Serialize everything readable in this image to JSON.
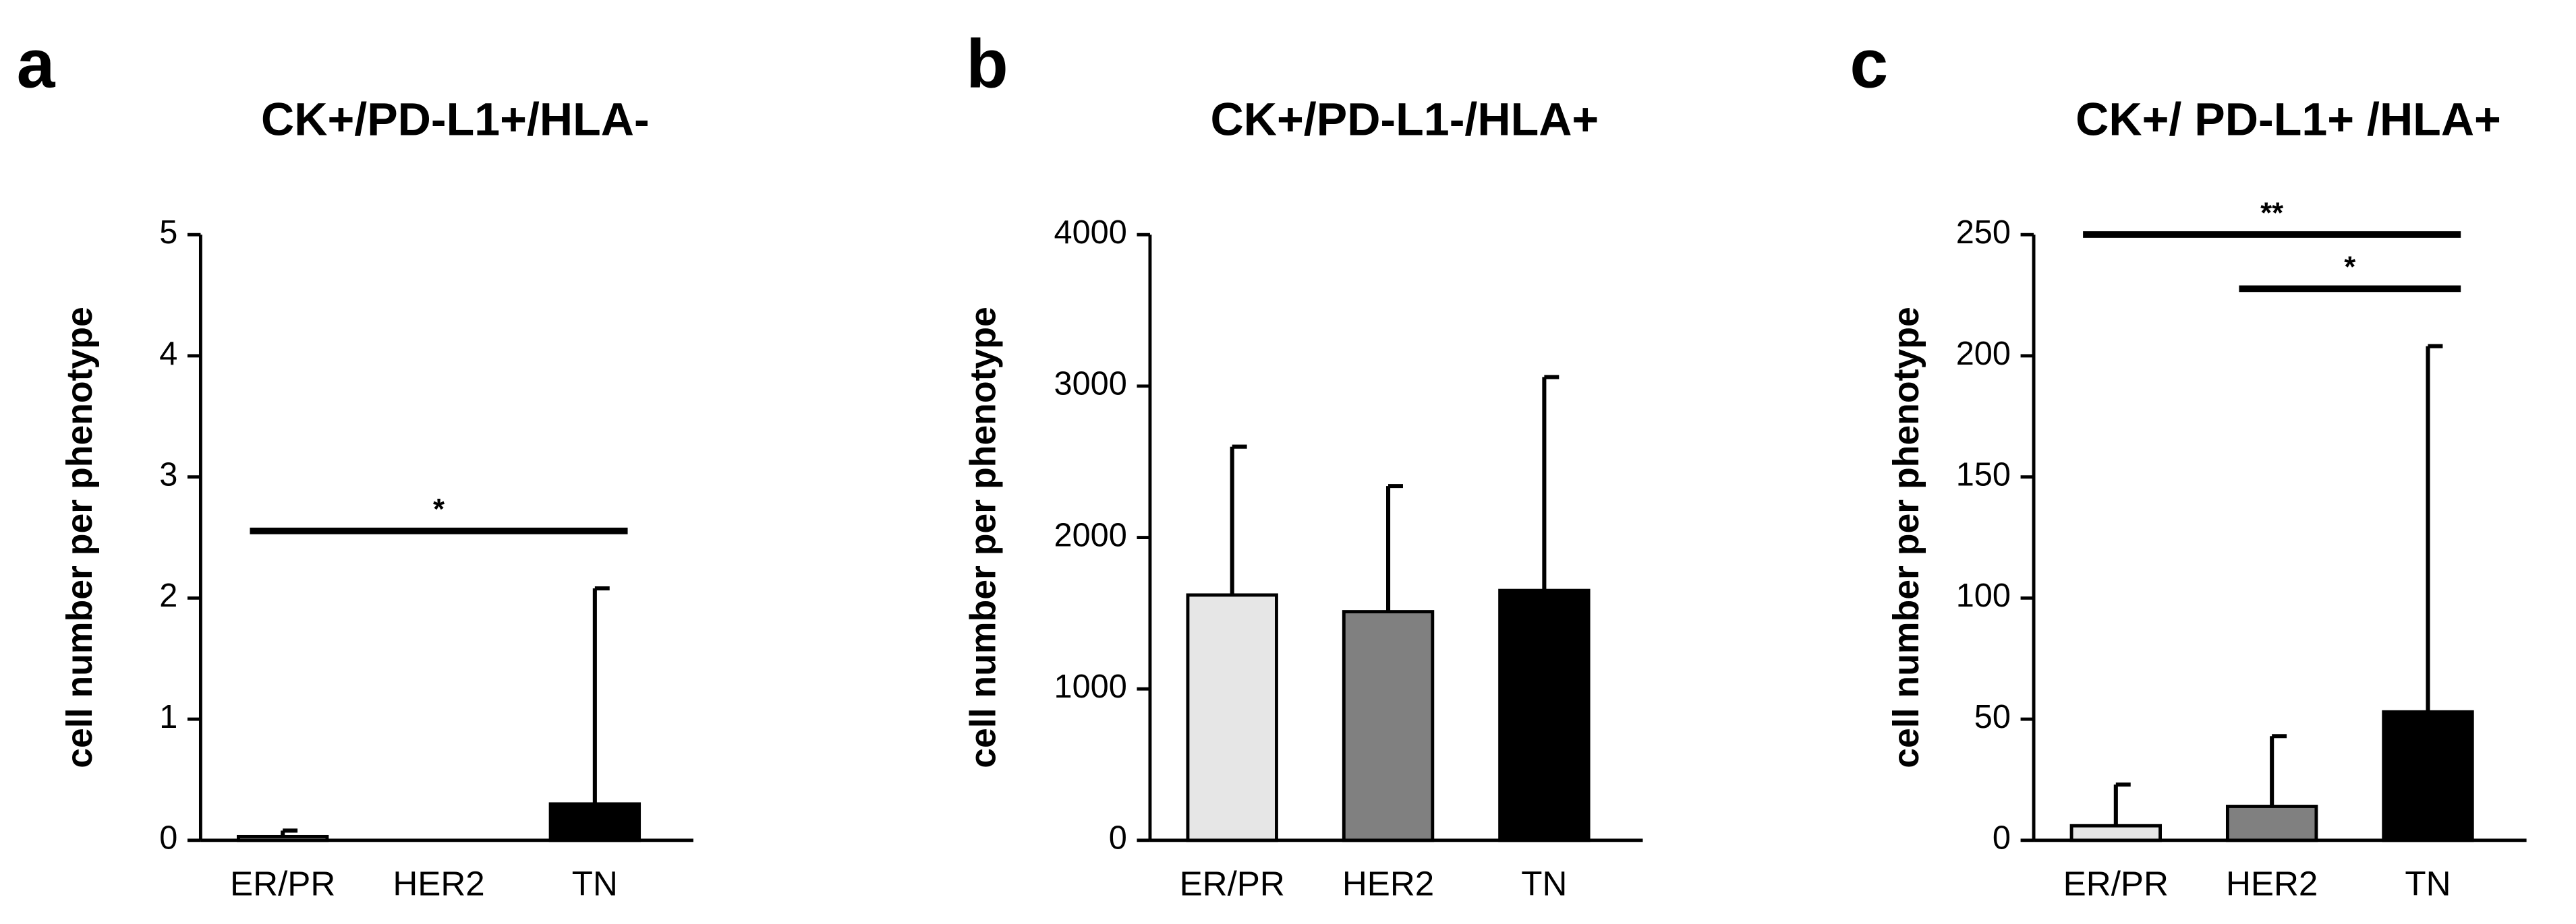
{
  "chart_data": [
    {
      "type": "bar",
      "panel": "a",
      "title": "CK+/PD-L1+/HLA-",
      "y_label": "cell number per phenotype",
      "categories": [
        "ER/PR",
        "HER2",
        "TN"
      ],
      "values": [
        0.03,
        0,
        0.3
      ],
      "errors": [
        0.05,
        0,
        1.78
      ],
      "colors": [
        "#e6e6e6",
        "#808080",
        "#000000"
      ],
      "ylim": [
        0,
        5
      ],
      "yticks": [
        0,
        1,
        2,
        3,
        4,
        5
      ],
      "significance": [
        {
          "from": 0,
          "to": 2,
          "label": "*"
        }
      ]
    },
    {
      "type": "bar",
      "panel": "b",
      "title": "CK+/PD-L1-/HLA+",
      "y_label": "cell number per phenotype",
      "categories": [
        "ER/PR",
        "HER2",
        "TN"
      ],
      "values": [
        1620,
        1510,
        1650
      ],
      "errors": [
        980,
        830,
        1410
      ],
      "colors": [
        "#e6e6e6",
        "#808080",
        "#000000"
      ],
      "ylim": [
        0,
        4000
      ],
      "yticks": [
        0,
        1000,
        2000,
        3000,
        4000
      ],
      "significance": []
    },
    {
      "type": "bar",
      "panel": "c",
      "title": "CK+/ PD-L1+ /HLA+",
      "y_label": "cell number per phenotype",
      "categories": [
        "ER/PR",
        "HER2",
        "TN"
      ],
      "values": [
        6,
        14,
        53
      ],
      "errors": [
        17,
        29,
        151
      ],
      "colors": [
        "#e6e6e6",
        "#808080",
        "#000000"
      ],
      "ylim": [
        0,
        250
      ],
      "yticks": [
        0,
        50,
        100,
        150,
        200,
        250
      ],
      "significance": [
        {
          "from": 1,
          "to": 2,
          "label": "*"
        },
        {
          "from": 0,
          "to": 2,
          "label": "**"
        }
      ]
    }
  ]
}
